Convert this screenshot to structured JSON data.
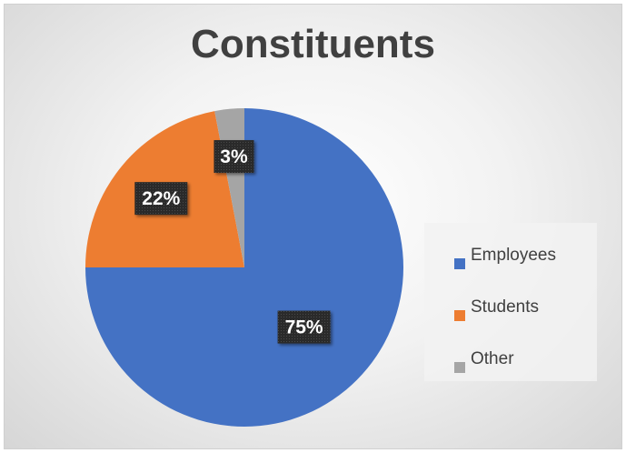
{
  "chart_data": {
    "type": "pie",
    "title": "Constituents",
    "slices": [
      {
        "label": "Employees",
        "value": 75,
        "data_label": "75%",
        "color": "#4472C4"
      },
      {
        "label": "Students",
        "value": 22,
        "data_label": "22%",
        "color": "#ED7D31"
      },
      {
        "label": "Other",
        "value": 3,
        "data_label": "3%",
        "color": "#A5A5A5"
      }
    ],
    "legend_position": "right"
  }
}
